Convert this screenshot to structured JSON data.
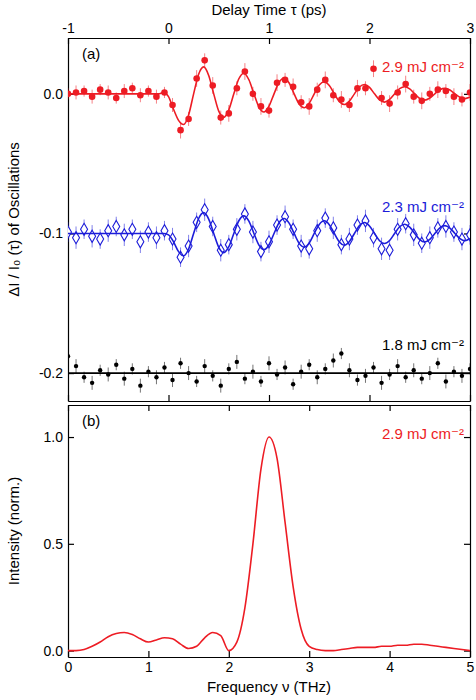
{
  "chart_data": [
    {
      "type": "scatter",
      "xlabel": "Delay Time τ (ps)",
      "ylabel": "ΔI / I₀ (τ) of Oscillations",
      "annotations": [
        "(a)"
      ],
      "xlim": [
        -1,
        3
      ],
      "xticks": [
        -1,
        0,
        1,
        2,
        3
      ],
      "ylim": [
        -0.22,
        0.04
      ],
      "yticks": [
        {
          "value": 0,
          "label": "0.0"
        },
        -0.1,
        -0.2
      ],
      "series": [
        {
          "name": "2.9 mJ cm⁻²",
          "color": "#ed1c24",
          "marker": "circle",
          "x": [
            -1,
            -0.92,
            -0.84,
            -0.76,
            -0.68,
            -0.6,
            -0.52,
            -0.44,
            -0.36,
            -0.28,
            -0.2,
            -0.12,
            -0.04,
            0.04,
            0.12,
            0.2,
            0.28,
            0.36,
            0.44,
            0.52,
            0.6,
            0.68,
            0.76,
            0.84,
            0.92,
            1,
            1.08,
            1.16,
            1.24,
            1.32,
            1.4,
            1.48,
            1.56,
            1.64,
            1.72,
            1.8,
            1.88,
            1.96,
            2.04,
            2.12,
            2.2,
            2.28,
            2.36,
            2.44,
            2.52,
            2.6,
            2.68,
            2.76,
            2.84,
            2.92,
            3
          ],
          "values": [
            0,
            0.001,
            0.002,
            -0.002,
            0.003,
            0.001,
            -0.003,
            0.002,
            0.004,
            -0.001,
            0.002,
            -0.002,
            0.001,
            -0.008,
            -0.026,
            -0.018,
            0.011,
            0.024,
            0.006,
            -0.017,
            -0.014,
            0.004,
            0.016,
            0,
            -0.009,
            -0.012,
            0.008,
            0.01,
            0.005,
            -0.006,
            -0.009,
            0.003,
            0.01,
            -0.001,
            -0.004,
            -0.008,
            0.004,
            0.004,
            0.018,
            -0.003,
            -0.007,
            0.001,
            0.007,
            -0.002,
            -0.005,
            0,
            0.003,
            0.002,
            -0.002,
            -0.004,
            0.001
          ],
          "errors": [
            0.004,
            0.005,
            0.004,
            0.005,
            0.004,
            0.005,
            0.004,
            0.005,
            0.004,
            0.005,
            0.004,
            0.005,
            0.004,
            0.005,
            0.006,
            0.005,
            0.006,
            0.005,
            0.006,
            0.005,
            0.006,
            0.005,
            0.006,
            0.005,
            0.006,
            0.005,
            0.006,
            0.005,
            0.006,
            0.005,
            0.006,
            0.005,
            0.006,
            0.005,
            0.006,
            0.005,
            0.006,
            0.005,
            0.006,
            0.005,
            0.006,
            0.005,
            0.006,
            0.005,
            0.006,
            0.005,
            0.006,
            0.005,
            0.006,
            0.005,
            0.006
          ]
        },
        {
          "type": "line",
          "color": "#ed1c24",
          "x": [
            -1,
            -0.95,
            -0.9,
            -0.85,
            -0.8,
            -0.75,
            -0.7,
            -0.65,
            -0.6,
            -0.55,
            -0.5,
            -0.45,
            -0.4,
            -0.35,
            -0.3,
            -0.25,
            -0.2,
            -0.15,
            -0.1,
            -0.05,
            0,
            0.05,
            0.1,
            0.15,
            0.2,
            0.25,
            0.3,
            0.35,
            0.4,
            0.45,
            0.5,
            0.55,
            0.6,
            0.65,
            0.7,
            0.75,
            0.8,
            0.85,
            0.9,
            0.95,
            1,
            1.05,
            1.1,
            1.15,
            1.2,
            1.25,
            1.3,
            1.35,
            1.4,
            1.45,
            1.5,
            1.55,
            1.6,
            1.65,
            1.7,
            1.75,
            1.8,
            1.85,
            1.9,
            1.95,
            2,
            2.05,
            2.1,
            2.15,
            2.2,
            2.25,
            2.3,
            2.35,
            2.4,
            2.45,
            2.5,
            2.55,
            2.6,
            2.65,
            2.7,
            2.75,
            2.8,
            2.85,
            2.9,
            2.95,
            3
          ],
          "values": [
            0,
            0,
            0,
            0,
            0,
            0,
            0,
            0,
            0,
            0,
            0,
            0,
            0,
            0,
            0,
            0,
            0,
            0,
            0,
            0.001,
            -0.002,
            -0.011,
            -0.019,
            -0.022,
            -0.0151,
            0,
            0.0141,
            0.0193,
            0.0132,
            0,
            -0.0124,
            -0.0169,
            -0.0115,
            0,
            0.0108,
            0.0148,
            0.0101,
            0,
            -0.0095,
            -0.013,
            -0.0088,
            0,
            0.0083,
            0.0114,
            0.0078,
            0,
            -0.0073,
            -0.01,
            -0.0068,
            0,
            0.0064,
            0.0087,
            0.0059,
            0,
            -0.0056,
            -0.0076,
            -0.0052,
            0,
            0.0049,
            0.0067,
            0.0046,
            0,
            -0.0043,
            -0.0059,
            -0.004,
            0,
            0.0037,
            0.0051,
            0.0035,
            0,
            -0.0033,
            -0.0045,
            -0.003,
            0,
            0.0029,
            0.0039,
            0.0027,
            0,
            -0.0025,
            -0.0034,
            -0.0023
          ]
        },
        {
          "name": "2.3 mJ cm⁻²",
          "color": "#1c1cd9",
          "marker": "diamond-open",
          "x": [
            -1,
            -0.92,
            -0.84,
            -0.76,
            -0.68,
            -0.6,
            -0.52,
            -0.44,
            -0.36,
            -0.28,
            -0.2,
            -0.12,
            -0.04,
            0.04,
            0.12,
            0.2,
            0.28,
            0.36,
            0.44,
            0.52,
            0.6,
            0.68,
            0.76,
            0.84,
            0.92,
            1,
            1.08,
            1.16,
            1.24,
            1.32,
            1.4,
            1.48,
            1.56,
            1.64,
            1.72,
            1.8,
            1.88,
            1.96,
            2.04,
            2.12,
            2.2,
            2.28,
            2.36,
            2.44,
            2.52,
            2.6,
            2.68,
            2.76,
            2.84,
            2.92,
            3
          ],
          "values": [
            -0.099,
            -0.103,
            -0.097,
            -0.102,
            -0.104,
            -0.098,
            -0.095,
            -0.101,
            -0.097,
            -0.106,
            -0.099,
            -0.103,
            -0.098,
            -0.104,
            -0.117,
            -0.109,
            -0.092,
            -0.083,
            -0.095,
            -0.112,
            -0.108,
            -0.097,
            -0.086,
            -0.099,
            -0.113,
            -0.106,
            -0.094,
            -0.088,
            -0.097,
            -0.109,
            -0.111,
            -0.098,
            -0.089,
            -0.096,
            -0.108,
            -0.104,
            -0.094,
            -0.091,
            -0.103,
            -0.111,
            -0.112,
            -0.097,
            -0.093,
            -0.101,
            -0.107,
            -0.103,
            -0.096,
            -0.095,
            -0.099,
            -0.104,
            -0.101
          ],
          "errors": [
            0.007,
            0.008,
            0.007,
            0.008,
            0.007,
            0.008,
            0.007,
            0.008,
            0.007,
            0.008,
            0.007,
            0.008,
            0.007,
            0.008,
            0.007,
            0.008,
            0.007,
            0.008,
            0.007,
            0.008,
            0.007,
            0.008,
            0.007,
            0.008,
            0.007,
            0.008,
            0.007,
            0.008,
            0.007,
            0.008,
            0.007,
            0.008,
            0.007,
            0.008,
            0.007,
            0.008,
            0.007,
            0.008,
            0.007,
            0.008,
            0.007,
            0.008,
            0.007,
            0.008,
            0.007,
            0.008,
            0.007,
            0.008,
            0.007,
            0.008,
            0.007
          ]
        },
        {
          "type": "line",
          "color": "#1c1cd9",
          "x": [
            -1,
            -0.95,
            -0.9,
            -0.85,
            -0.8,
            -0.75,
            -0.7,
            -0.65,
            -0.6,
            -0.55,
            -0.5,
            -0.45,
            -0.4,
            -0.35,
            -0.3,
            -0.25,
            -0.2,
            -0.15,
            -0.1,
            -0.05,
            0,
            0.05,
            0.1,
            0.15,
            0.2,
            0.25,
            0.3,
            0.35,
            0.4,
            0.45,
            0.5,
            0.55,
            0.6,
            0.65,
            0.7,
            0.75,
            0.8,
            0.85,
            0.9,
            0.95,
            1,
            1.05,
            1.1,
            1.15,
            1.2,
            1.25,
            1.3,
            1.35,
            1.4,
            1.45,
            1.5,
            1.55,
            1.6,
            1.65,
            1.7,
            1.75,
            1.8,
            1.85,
            1.9,
            1.95,
            2,
            2.05,
            2.1,
            2.15,
            2.2,
            2.25,
            2.3,
            2.35,
            2.4,
            2.45,
            2.5,
            2.55,
            2.6,
            2.65,
            2.7,
            2.75,
            2.8,
            2.85,
            2.9,
            2.95,
            3
          ],
          "values": [
            -0.1,
            -0.1,
            -0.1,
            -0.1,
            -0.1,
            -0.1,
            -0.1,
            -0.1,
            -0.1,
            -0.1,
            -0.1,
            -0.1,
            -0.1,
            -0.1,
            -0.1,
            -0.1,
            -0.1,
            -0.1,
            -0.1,
            -0.1,
            -0.101,
            -0.106,
            -0.113,
            -0.116,
            -0.1111,
            -0.1,
            -0.0893,
            -0.0851,
            -0.0897,
            -0.1,
            -0.1099,
            -0.1137,
            -0.1095,
            -0.1,
            -0.0909,
            -0.0874,
            -0.0912,
            -0.1,
            -0.1084,
            -0.1116,
            -0.1081,
            -0.1,
            -0.0923,
            -0.0893,
            -0.0926,
            -0.1,
            -0.1071,
            -0.1098,
            -0.1068,
            -0.1,
            -0.0935,
            -0.0909,
            -0.0937,
            -0.1,
            -0.1061,
            -0.1084,
            -0.1058,
            -0.1,
            -0.0944,
            -0.0922,
            -0.0946,
            -0.1,
            -0.1052,
            -0.1072,
            -0.105,
            -0.1,
            -0.0952,
            -0.0934,
            -0.0954,
            -0.1,
            -0.1044,
            -0.1061,
            -0.1042,
            -0.1,
            -0.096,
            -0.0944,
            -0.0961,
            -0.1,
            -0.1037,
            -0.1052,
            -0.1036
          ]
        },
        {
          "name": "1.8 mJ cm⁻²",
          "color": "#000000",
          "marker": "dot",
          "x": [
            -1,
            -0.92,
            -0.84,
            -0.76,
            -0.68,
            -0.6,
            -0.52,
            -0.44,
            -0.36,
            -0.28,
            -0.2,
            -0.12,
            -0.04,
            0.04,
            0.12,
            0.2,
            0.28,
            0.36,
            0.44,
            0.52,
            0.6,
            0.68,
            0.76,
            0.84,
            0.92,
            1,
            1.08,
            1.16,
            1.24,
            1.32,
            1.4,
            1.48,
            1.56,
            1.64,
            1.72,
            1.8,
            1.88,
            1.96,
            2.04,
            2.12,
            2.2,
            2.28,
            2.36,
            2.44,
            2.52,
            2.6,
            2.68,
            2.76,
            2.84,
            2.92,
            3
          ],
          "values": [
            -0.188,
            -0.195,
            -0.203,
            -0.207,
            -0.198,
            -0.201,
            -0.194,
            -0.204,
            -0.197,
            -0.209,
            -0.199,
            -0.203,
            -0.196,
            -0.205,
            -0.193,
            -0.2,
            -0.206,
            -0.195,
            -0.202,
            -0.209,
            -0.197,
            -0.192,
            -0.204,
            -0.199,
            -0.206,
            -0.193,
            -0.201,
            -0.196,
            -0.208,
            -0.199,
            -0.194,
            -0.203,
            -0.197,
            -0.191,
            -0.186,
            -0.198,
            -0.205,
            -0.202,
            -0.196,
            -0.207,
            -0.201,
            -0.195,
            -0.203,
            -0.198,
            -0.204,
            -0.2,
            -0.193,
            -0.206,
            -0.199,
            -0.202,
            -0.197
          ],
          "errors": [
            0.004,
            0.005,
            0.004,
            0.005,
            0.004,
            0.005,
            0.004,
            0.005,
            0.004,
            0.005,
            0.004,
            0.005,
            0.004,
            0.005,
            0.004,
            0.005,
            0.004,
            0.005,
            0.004,
            0.005,
            0.004,
            0.005,
            0.004,
            0.005,
            0.004,
            0.005,
            0.004,
            0.005,
            0.004,
            0.005,
            0.004,
            0.005,
            0.004,
            0.005,
            0.004,
            0.005,
            0.004,
            0.005,
            0.004,
            0.005,
            0.004,
            0.005,
            0.004,
            0.005,
            0.004,
            0.005,
            0.004,
            0.005,
            0.004,
            0.005,
            0.004
          ]
        },
        {
          "type": "line",
          "color": "#000000",
          "x": [
            -1,
            3
          ],
          "values": [
            -0.2,
            -0.2
          ]
        }
      ]
    },
    {
      "type": "line",
      "xlabel": "Frequency ν (THz)",
      "ylabel": "Intensity (norm.)",
      "annotations": [
        "(b)"
      ],
      "xlim": [
        0,
        5
      ],
      "xticks": [
        0,
        1,
        2,
        3,
        4,
        5
      ],
      "ylim": [
        -0.03,
        1.15
      ],
      "yticks": [
        {
          "value": 0,
          "label": "0.0"
        },
        0.5,
        {
          "value": 1,
          "label": "1.0"
        }
      ],
      "series": [
        {
          "name": "2.9 mJ cm⁻²",
          "color": "#ed1c24",
          "x": [
            0,
            0.1,
            0.2,
            0.3,
            0.4,
            0.5,
            0.6,
            0.7,
            0.8,
            0.9,
            1,
            1.1,
            1.2,
            1.3,
            1.4,
            1.5,
            1.6,
            1.7,
            1.8,
            1.9,
            2,
            2.1,
            2.2,
            2.3,
            2.4,
            2.5,
            2.6,
            2.7,
            2.8,
            2.9,
            3,
            3.1,
            3.2,
            3.3,
            3.4,
            3.5,
            3.6,
            3.7,
            3.8,
            3.9,
            4,
            4.1,
            4.2,
            4.3,
            4.4,
            4.5,
            4.6,
            4.7,
            4.8,
            4.9,
            5
          ],
          "values": [
            0,
            0,
            0.005,
            0.02,
            0.04,
            0.065,
            0.08,
            0.085,
            0.075,
            0.055,
            0.04,
            0.05,
            0.06,
            0.055,
            0.03,
            0.01,
            0.02,
            0.06,
            0.085,
            0.07,
            0,
            0.04,
            0.2,
            0.5,
            0.85,
            1,
            0.9,
            0.6,
            0.3,
            0.1,
            0.02,
            0.005,
            0,
            0,
            0.005,
            0.01,
            0.015,
            0.015,
            0.015,
            0.02,
            0.02,
            0.025,
            0.025,
            0.03,
            0.03,
            0.025,
            0.02,
            0.015,
            0.01,
            0.005,
            0
          ]
        }
      ]
    }
  ]
}
